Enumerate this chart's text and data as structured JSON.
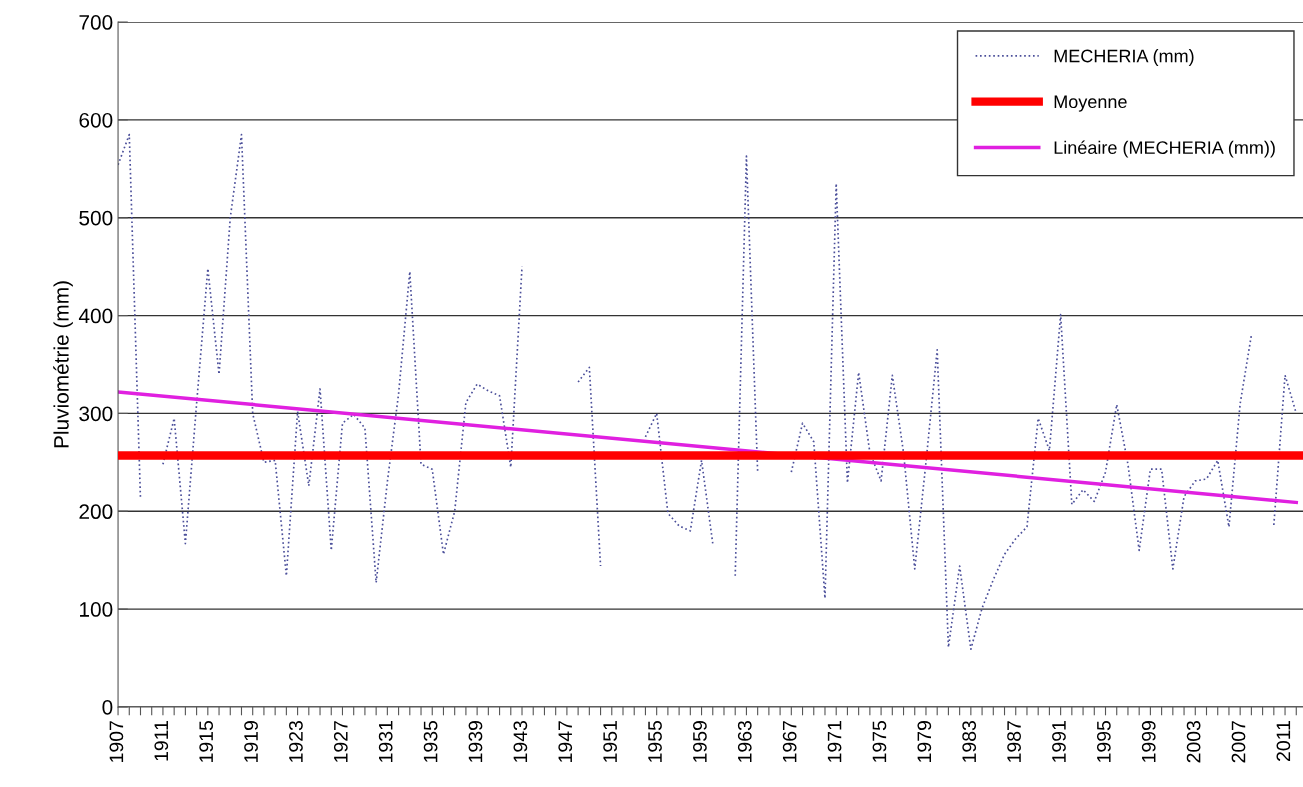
{
  "chart_data": {
    "type": "line",
    "ylabel": "Pluviométrie (mm)",
    "x": [
      1907,
      1908,
      1909,
      1910,
      1911,
      1912,
      1913,
      1914,
      1915,
      1916,
      1917,
      1918,
      1919,
      1920,
      1921,
      1922,
      1923,
      1924,
      1925,
      1926,
      1927,
      1928,
      1929,
      1930,
      1931,
      1932,
      1933,
      1934,
      1935,
      1936,
      1937,
      1938,
      1939,
      1940,
      1941,
      1942,
      1943,
      1944,
      1945,
      1946,
      1947,
      1948,
      1949,
      1950,
      1951,
      1952,
      1953,
      1954,
      1955,
      1956,
      1957,
      1958,
      1959,
      1960,
      1961,
      1962,
      1963,
      1964,
      1965,
      1966,
      1967,
      1968,
      1969,
      1970,
      1971,
      1972,
      1973,
      1974,
      1975,
      1976,
      1977,
      1978,
      1979,
      1980,
      1981,
      1982,
      1983,
      1984,
      1985,
      1986,
      1987,
      1988,
      1989,
      1990,
      1991,
      1992,
      1993,
      1994,
      1995,
      1996,
      1997,
      1998,
      1999,
      2000,
      2001,
      2002,
      2003,
      2004,
      2005,
      2006,
      2007,
      2008,
      2009,
      2010,
      2011,
      2012
    ],
    "series": [
      {
        "name": "MECHERIA (mm)",
        "color": "#4b4f9a",
        "line_style": "dotted",
        "values": [
          554,
          585,
          212,
          null,
          248,
          295,
          167,
          310,
          448,
          340,
          500,
          585,
          300,
          250,
          252,
          134,
          302,
          226,
          325,
          160,
          290,
          299,
          285,
          127,
          230,
          320,
          445,
          248,
          243,
          156,
          200,
          311,
          330,
          323,
          318,
          245,
          450,
          null,
          null,
          null,
          null,
          332,
          347,
          144,
          null,
          null,
          null,
          276,
          300,
          198,
          185,
          180,
          252,
          167,
          null,
          134,
          563,
          240,
          null,
          null,
          240,
          290,
          271,
          111,
          535,
          229,
          342,
          260,
          231,
          339,
          260,
          141,
          250,
          365,
          61,
          144,
          59,
          101,
          130,
          156,
          172,
          184,
          295,
          262,
          401,
          207,
          222,
          210,
          240,
          309,
          248,
          160,
          243,
          243,
          141,
          215,
          231,
          233,
          252,
          184,
          310,
          380,
          null,
          186,
          339,
          300
        ]
      },
      {
        "name": "Linéaire (MECHERIA (mm))",
        "type": "line",
        "color": "#e020e0",
        "line_style": "solid",
        "x": [
          1907,
          2012
        ],
        "values": [
          322,
          209
        ]
      }
    ],
    "ref_lines": [
      {
        "axis": "y",
        "value": 257,
        "label": "Moyenne",
        "color": "#ff0000",
        "line_style": "solid"
      }
    ],
    "xlim": [
      1907,
      2012.6
    ],
    "xticks": [
      1907,
      {
        "value": 1908,
        "label": null
      },
      {
        "value": 1909,
        "label": null
      },
      {
        "value": 1910,
        "label": null
      },
      1911,
      {
        "value": 1912,
        "label": null
      },
      {
        "value": 1913,
        "label": null
      },
      {
        "value": 1914,
        "label": null
      },
      1915,
      {
        "value": 1916,
        "label": null
      },
      {
        "value": 1917,
        "label": null
      },
      {
        "value": 1918,
        "label": null
      },
      1919,
      {
        "value": 1920,
        "label": null
      },
      {
        "value": 1921,
        "label": null
      },
      {
        "value": 1922,
        "label": null
      },
      1923,
      {
        "value": 1924,
        "label": null
      },
      {
        "value": 1925,
        "label": null
      },
      {
        "value": 1926,
        "label": null
      },
      1927,
      {
        "value": 1928,
        "label": null
      },
      {
        "value": 1929,
        "label": null
      },
      {
        "value": 1930,
        "label": null
      },
      1931,
      {
        "value": 1932,
        "label": null
      },
      {
        "value": 1933,
        "label": null
      },
      {
        "value": 1934,
        "label": null
      },
      1935,
      {
        "value": 1936,
        "label": null
      },
      {
        "value": 1937,
        "label": null
      },
      {
        "value": 1938,
        "label": null
      },
      1939,
      {
        "value": 1940,
        "label": null
      },
      {
        "value": 1941,
        "label": null
      },
      {
        "value": 1942,
        "label": null
      },
      1943,
      {
        "value": 1944,
        "label": null
      },
      {
        "value": 1945,
        "label": null
      },
      {
        "value": 1946,
        "label": null
      },
      1947,
      {
        "value": 1948,
        "label": null
      },
      {
        "value": 1949,
        "label": null
      },
      {
        "value": 1950,
        "label": null
      },
      1951,
      {
        "value": 1952,
        "label": null
      },
      {
        "value": 1953,
        "label": null
      },
      {
        "value": 1954,
        "label": null
      },
      1955,
      {
        "value": 1956,
        "label": null
      },
      {
        "value": 1957,
        "label": null
      },
      {
        "value": 1958,
        "label": null
      },
      1959,
      {
        "value": 1960,
        "label": null
      },
      {
        "value": 1961,
        "label": null
      },
      {
        "value": 1962,
        "label": null
      },
      1963,
      {
        "value": 1964,
        "label": null
      },
      {
        "value": 1965,
        "label": null
      },
      {
        "value": 1966,
        "label": null
      },
      1967,
      {
        "value": 1968,
        "label": null
      },
      {
        "value": 1969,
        "label": null
      },
      {
        "value": 1970,
        "label": null
      },
      1971,
      {
        "value": 1972,
        "label": null
      },
      {
        "value": 1973,
        "label": null
      },
      {
        "value": 1974,
        "label": null
      },
      1975,
      {
        "value": 1976,
        "label": null
      },
      {
        "value": 1977,
        "label": null
      },
      {
        "value": 1978,
        "label": null
      },
      1979,
      {
        "value": 1980,
        "label": null
      },
      {
        "value": 1981,
        "label": null
      },
      {
        "value": 1982,
        "label": null
      },
      1983,
      {
        "value": 1984,
        "label": null
      },
      {
        "value": 1985,
        "label": null
      },
      {
        "value": 1986,
        "label": null
      },
      1987,
      {
        "value": 1988,
        "label": null
      },
      {
        "value": 1989,
        "label": null
      },
      {
        "value": 1990,
        "label": null
      },
      1991,
      {
        "value": 1992,
        "label": null
      },
      {
        "value": 1993,
        "label": null
      },
      {
        "value": 1994,
        "label": null
      },
      1995,
      {
        "value": 1996,
        "label": null
      },
      {
        "value": 1997,
        "label": null
      },
      {
        "value": 1998,
        "label": null
      },
      1999,
      {
        "value": 2000,
        "label": null
      },
      {
        "value": 2001,
        "label": null
      },
      {
        "value": 2002,
        "label": null
      },
      2003,
      {
        "value": 2004,
        "label": null
      },
      {
        "value": 2005,
        "label": null
      },
      {
        "value": 2006,
        "label": null
      },
      2007,
      {
        "value": 2008,
        "label": null
      },
      {
        "value": 2009,
        "label": null
      },
      {
        "value": 2010,
        "label": null
      },
      2011,
      {
        "value": 2012,
        "label": null
      }
    ],
    "ylim": [
      0,
      700
    ],
    "yticks": [
      0,
      100,
      200,
      300,
      400,
      500,
      600,
      700
    ],
    "grid": "y",
    "legend": "top right"
  }
}
